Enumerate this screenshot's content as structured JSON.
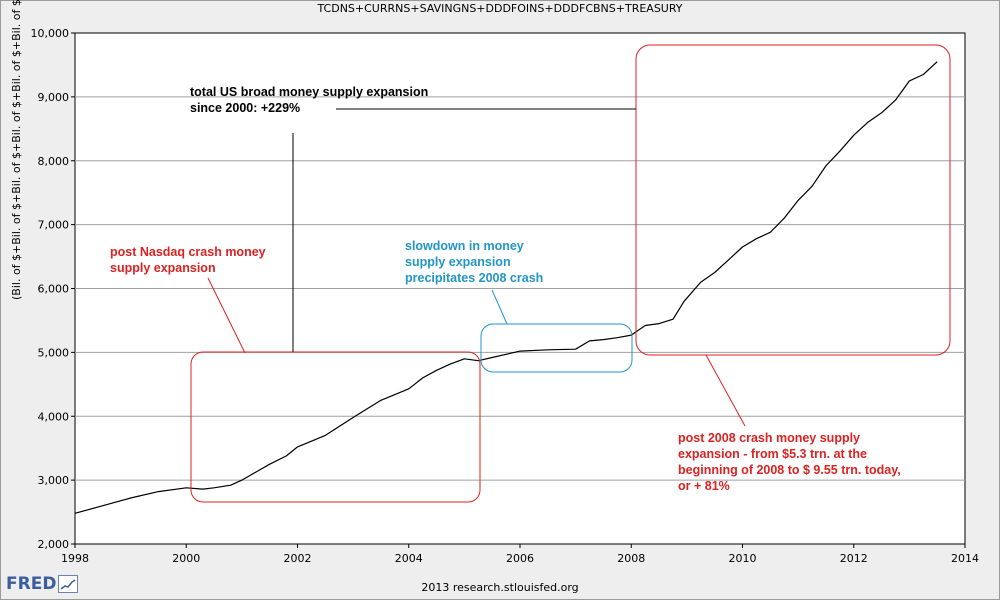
{
  "chart_data": {
    "type": "line",
    "title": "TCDNS+CURRNS+SAVINGNS+DDDFOINS+DDDFCBNS+TREASURY",
    "ylabel": "(Bil. of $+Bil. of $+Bil. of $+Bil. of $+Bil. of $+Bil. of $)",
    "xlabel": "",
    "xlim": [
      1998,
      2014
    ],
    "ylim": [
      2000,
      10000
    ],
    "xticks": [
      "1998",
      "2000",
      "2002",
      "2004",
      "2006",
      "2008",
      "2010",
      "2012",
      "2014"
    ],
    "yticks": [
      "2,000",
      "3,000",
      "4,000",
      "5,000",
      "6,000",
      "7,000",
      "8,000",
      "9,000",
      "10,000"
    ],
    "grid": "horizontal",
    "series": [
      {
        "name": "TCDNS+CURRNS+SAVINGNS+DDDFOINS+DDDFCBNS+TREASURY",
        "x": [
          1998.0,
          1998.5,
          1999.0,
          1999.5,
          2000.0,
          2000.3,
          2000.5,
          2000.8,
          2001.0,
          2001.3,
          2001.5,
          2001.8,
          2002.0,
          2002.5,
          2003.0,
          2003.5,
          2004.0,
          2004.25,
          2004.5,
          2004.75,
          2005.0,
          2005.25,
          2005.5,
          2005.75,
          2006.0,
          2006.5,
          2007.0,
          2007.25,
          2007.5,
          2007.75,
          2008.0,
          2008.25,
          2008.5,
          2008.75,
          2008.95,
          2009.25,
          2009.5,
          2009.75,
          2010.0,
          2010.25,
          2010.5,
          2010.75,
          2011.0,
          2011.25,
          2011.5,
          2011.75,
          2012.0,
          2012.25,
          2012.5,
          2012.75,
          2013.0,
          2013.25,
          2013.5
        ],
        "values": [
          2480,
          2600,
          2720,
          2820,
          2880,
          2860,
          2880,
          2920,
          3000,
          3150,
          3250,
          3380,
          3520,
          3700,
          3980,
          4250,
          4430,
          4600,
          4720,
          4820,
          4900,
          4870,
          4920,
          4970,
          5020,
          5040,
          5050,
          5180,
          5200,
          5230,
          5270,
          5420,
          5450,
          5520,
          5800,
          6100,
          6250,
          6450,
          6650,
          6780,
          6880,
          7100,
          7380,
          7600,
          7920,
          8150,
          8400,
          8600,
          8750,
          8950,
          9250,
          9350,
          9550
        ]
      }
    ]
  },
  "annotations": {
    "total_line1": "total US broad money supply expansion",
    "total_line2": "since 2000: +229%",
    "nasdaq_line1": "post Nasdaq crash money",
    "nasdaq_line2": "supply expansion",
    "slow_line1": "slowdown in money",
    "slow_line2": "supply expansion",
    "slow_line3": "precipitates 2008 crash",
    "post_line1": "post 2008 crash money supply",
    "post_line2": "expansion - from $5.3 trn. at the",
    "post_line3": "beginning of 2008 to $ 9.55 trn. today,",
    "post_line4": "or + 81%"
  },
  "footer": {
    "source": "2013 research.stlouisfed.org",
    "logo": "FRED"
  },
  "colors": {
    "series": "#000000",
    "red_annotation": "#dd2222",
    "blue_annotation": "#2196c9",
    "plot_bg": "#ffffff",
    "frame_bg": "#eeeeee"
  }
}
